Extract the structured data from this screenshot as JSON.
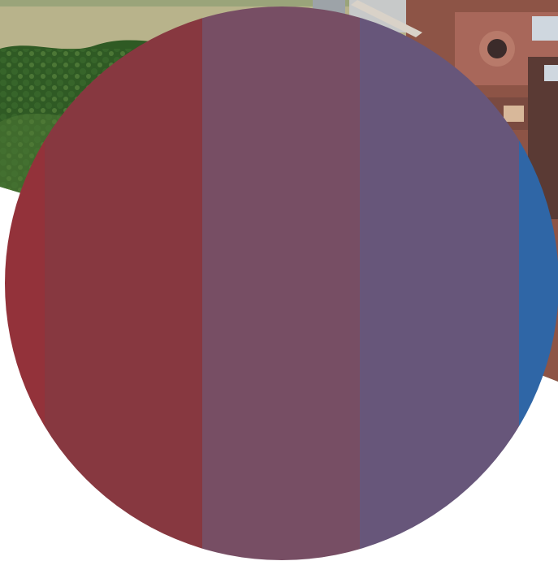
{
  "colors": {
    "background": "#ffffff",
    "sky_field": "#b7b48a",
    "foliage_dark": "#2f5a24",
    "foliage_mid": "#4f7a35",
    "foliage_light": "#7ea05a",
    "building_brick": "#9b5a4a",
    "building_dark": "#5a3a34",
    "building_window": "#cfd7df",
    "stripe_red_edge": "#93323a",
    "stripe_crimson": "#873840",
    "stripe_mauve": "#774e64",
    "stripe_purple": "#67567a",
    "stripe_blue": "#2f66a6"
  },
  "photo": {
    "content": "aerial-photo-green-field-and-brick-building"
  },
  "badge": {
    "shape": "circle",
    "stripe_count": 5
  }
}
